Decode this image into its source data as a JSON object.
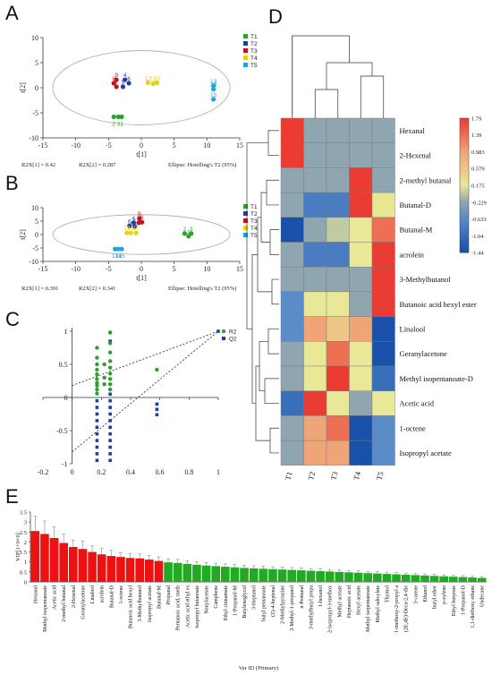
{
  "panels": {
    "a": "A",
    "b": "B",
    "c": "C",
    "d": "D",
    "e": "E"
  },
  "chart_data": [
    {
      "type": "scatter",
      "panel": "A",
      "xlabel": "t[1]",
      "ylabel": "t[2]",
      "xlim": [
        -15,
        15
      ],
      "ylim": [
        -10,
        10
      ],
      "xticks": [
        -15,
        -10,
        -5,
        0,
        5,
        10,
        15
      ],
      "yticks": [
        -10,
        -5,
        0,
        5,
        10
      ],
      "footer": [
        "R2X[1] = 0.42",
        "R2X[2] = 0.287",
        "Ellipse: Hotelling's T2 (95%)"
      ],
      "legend": [
        "T1",
        "T2",
        "T3",
        "T4",
        "T5"
      ],
      "colors": [
        "#2ca02c",
        "#1f3fa0",
        "#c0141c",
        "#e8cf1a",
        "#1ea2e0"
      ],
      "points": [
        {
          "label": "2",
          "x": -4.2,
          "y": -5.8,
          "group": 0
        },
        {
          "label": "3",
          "x": -3.5,
          "y": -5.8,
          "group": 0
        },
        {
          "label": "1",
          "x": -3.0,
          "y": -5.8,
          "group": 0
        },
        {
          "label": "4",
          "x": -2.5,
          "y": 1.6,
          "group": 1
        },
        {
          "label": "5",
          "x": -2.8,
          "y": 0.2,
          "group": 1
        },
        {
          "label": "6",
          "x": -1.9,
          "y": 0.9,
          "group": 1
        },
        {
          "label": "9",
          "x": -3.8,
          "y": 1.6,
          "group": 2
        },
        {
          "label": "8",
          "x": -4.2,
          "y": 0.9,
          "group": 2
        },
        {
          "label": "7",
          "x": -3.8,
          "y": 0.2,
          "group": 2
        },
        {
          "label": "12",
          "x": 1.0,
          "y": 1.0,
          "group": 3
        },
        {
          "label": "11",
          "x": 1.8,
          "y": 0.8,
          "group": 3
        },
        {
          "label": "10",
          "x": 2.4,
          "y": 1.0,
          "group": 3
        },
        {
          "label": "13",
          "x": 11.0,
          "y": 0.4,
          "group": 4
        },
        {
          "label": "14",
          "x": 11.0,
          "y": -0.3,
          "group": 4
        },
        {
          "label": "15",
          "x": 11.0,
          "y": -2.3,
          "group": 4
        }
      ]
    },
    {
      "type": "scatter",
      "panel": "B",
      "xlabel": "t[1]",
      "ylabel": "t[2]",
      "xlim": [
        -15,
        15
      ],
      "ylim": [
        -10,
        10
      ],
      "xticks": [
        -15,
        -10,
        -5,
        0,
        5,
        10,
        15
      ],
      "yticks": [
        -10,
        -5,
        0,
        5,
        10
      ],
      "footer": [
        "R2X[1] = 0.391",
        "R2X[2] = 0.341",
        "Ellipse: Hotelling's T2 (95%)"
      ],
      "legend": [
        "T1",
        "T2",
        "T3",
        "T4",
        "T5"
      ],
      "colors": [
        "#2ca02c",
        "#1f3fa0",
        "#c0141c",
        "#e8cf1a",
        "#1ea2e0"
      ],
      "points": [
        {
          "label": "2",
          "x": 6.6,
          "y": 0.4,
          "group": 0
        },
        {
          "label": "3",
          "x": 7.6,
          "y": 0.4,
          "group": 0
        },
        {
          "label": "1",
          "x": 7.2,
          "y": -0.6,
          "group": 0
        },
        {
          "label": "4",
          "x": -1.2,
          "y": 4.4,
          "group": 1
        },
        {
          "label": "6",
          "x": -1.8,
          "y": 3.2,
          "group": 1
        },
        {
          "label": "5",
          "x": -1.0,
          "y": 3.0,
          "group": 1
        },
        {
          "label": "9",
          "x": -0.3,
          "y": 6.0,
          "group": 2
        },
        {
          "label": "8",
          "x": 0.1,
          "y": 4.6,
          "group": 2
        },
        {
          "label": "7",
          "x": -0.4,
          "y": 4.4,
          "group": 2
        },
        {
          "label": "12",
          "x": -2.2,
          "y": 0.6,
          "group": 3
        },
        {
          "label": "11",
          "x": -1.6,
          "y": 0.6,
          "group": 3
        },
        {
          "label": "10",
          "x": -0.8,
          "y": 0.6,
          "group": 3
        },
        {
          "label": "13",
          "x": -4.0,
          "y": -5.4,
          "group": 4
        },
        {
          "label": "15",
          "x": -3.0,
          "y": -5.4,
          "group": 4
        },
        {
          "label": "14",
          "x": -3.5,
          "y": -5.4,
          "group": 4
        }
      ]
    },
    {
      "type": "scatter",
      "panel": "C",
      "xlim": [
        -0.2,
        1
      ],
      "ylim": [
        -1,
        1
      ],
      "xticks": [
        "-0.2",
        "0",
        "0.2",
        "0.4",
        "0.6",
        "0.8",
        "1"
      ],
      "yticks": [
        "-1",
        "-0.5",
        "0",
        "0.5",
        "1"
      ],
      "legend": [
        "R2",
        "Q2"
      ],
      "colors": [
        "#2ca02c",
        "#1f3fa0"
      ],
      "r2_points": [
        {
          "x": 0.17,
          "y": 0.75
        },
        {
          "x": 0.17,
          "y": 0.6
        },
        {
          "x": 0.17,
          "y": 0.5
        },
        {
          "x": 0.17,
          "y": 0.42
        },
        {
          "x": 0.17,
          "y": 0.35
        },
        {
          "x": 0.17,
          "y": 0.28
        },
        {
          "x": 0.17,
          "y": 0.22
        },
        {
          "x": 0.17,
          "y": 0.18
        },
        {
          "x": 0.17,
          "y": 0.12
        },
        {
          "x": 0.17,
          "y": 0.06
        },
        {
          "x": 0.26,
          "y": 0.98
        },
        {
          "x": 0.26,
          "y": 0.82
        },
        {
          "x": 0.26,
          "y": 0.68
        },
        {
          "x": 0.26,
          "y": 0.55
        },
        {
          "x": 0.26,
          "y": 0.45
        },
        {
          "x": 0.26,
          "y": 0.36
        },
        {
          "x": 0.26,
          "y": 0.28
        },
        {
          "x": 0.26,
          "y": 0.2
        },
        {
          "x": 0.26,
          "y": 0.12
        },
        {
          "x": 0.22,
          "y": 0.5
        },
        {
          "x": 0.22,
          "y": 0.3
        },
        {
          "x": 0.22,
          "y": 0.2
        },
        {
          "x": 0.58,
          "y": 0.42
        }
      ],
      "q2_points": [
        {
          "x": 0.17,
          "y": -0.05
        },
        {
          "x": 0.17,
          "y": -0.15
        },
        {
          "x": 0.17,
          "y": -0.25
        },
        {
          "x": 0.17,
          "y": -0.35
        },
        {
          "x": 0.17,
          "y": -0.45
        },
        {
          "x": 0.17,
          "y": -0.55
        },
        {
          "x": 0.17,
          "y": -0.65
        },
        {
          "x": 0.17,
          "y": -0.75
        },
        {
          "x": 0.17,
          "y": -0.85
        },
        {
          "x": 0.17,
          "y": -0.95
        },
        {
          "x": 0.26,
          "y": 0.98
        },
        {
          "x": 0.26,
          "y": 0.85
        },
        {
          "x": 0.26,
          "y": 0.05
        },
        {
          "x": 0.26,
          "y": -0.05
        },
        {
          "x": 0.26,
          "y": -0.15
        },
        {
          "x": 0.26,
          "y": -0.25
        },
        {
          "x": 0.26,
          "y": -0.35
        },
        {
          "x": 0.26,
          "y": -0.45
        },
        {
          "x": 0.26,
          "y": -0.55
        },
        {
          "x": 0.26,
          "y": -0.65
        },
        {
          "x": 0.26,
          "y": -0.75
        },
        {
          "x": 0.26,
          "y": -0.85
        },
        {
          "x": 0.26,
          "y": -0.95
        },
        {
          "x": 0.58,
          "y": -0.1
        },
        {
          "x": 0.58,
          "y": -0.18
        },
        {
          "x": 0.58,
          "y": -0.26
        },
        {
          "x": 1.0,
          "y": 1.0
        }
      ],
      "lines": [
        {
          "series": "R2",
          "x": [
            0.0,
            1.0
          ],
          "y": [
            0.18,
            1.0
          ]
        },
        {
          "series": "Q2",
          "x": [
            0.0,
            1.0
          ],
          "y": [
            -0.82,
            1.0
          ]
        }
      ]
    },
    {
      "type": "heatmap",
      "panel": "D",
      "columns": [
        "T1",
        "T2",
        "T3",
        "T4",
        "T5"
      ],
      "rows": [
        "Hexanal",
        "2-Hexenal",
        "2-methyl butanal",
        "Butanal-D",
        "Butanal-M",
        "acrolein",
        "3-Methylbutanol",
        "Butanoic acid hexyl ester",
        "Linalool",
        "Geranylacetone",
        "Methyl isopentanoate-D",
        "Acetic acid",
        "1-octene",
        "Isopropyl acetate"
      ],
      "values": [
        [
          1.79,
          -0.229,
          -0.229,
          -0.229,
          -0.229
        ],
        [
          1.79,
          -0.229,
          -0.229,
          -0.229,
          -0.229
        ],
        [
          -0.229,
          -0.229,
          -0.229,
          1.79,
          -0.229
        ],
        [
          -0.229,
          -0.85,
          -0.85,
          1.79,
          0.2
        ],
        [
          -1.44,
          -0.229,
          0.0,
          0.175,
          1.39
        ],
        [
          -0.229,
          -0.85,
          -0.85,
          0.175,
          1.79
        ],
        [
          -0.229,
          -0.229,
          -0.229,
          -0.229,
          1.79
        ],
        [
          -0.633,
          0.175,
          0.175,
          -0.229,
          1.79
        ],
        [
          -0.633,
          0.983,
          0.579,
          0.983,
          -1.44
        ],
        [
          -0.229,
          0.175,
          1.39,
          0.175,
          -1.44
        ],
        [
          -0.229,
          0.175,
          1.79,
          0.175,
          -1.04
        ],
        [
          -1.04,
          1.79,
          0.175,
          -0.229,
          0.175
        ],
        [
          -0.229,
          0.983,
          1.39,
          -1.44,
          -0.633
        ],
        [
          -0.229,
          0.983,
          0.983,
          -1.44,
          -0.633
        ]
      ],
      "scale_ticks": [
        "1.79",
        "1.39",
        "0.983",
        "0.579",
        "0.175",
        "-0.229",
        "-0.633",
        "-1.04",
        "-1.44"
      ],
      "scale_range": [
        -1.44,
        1.79
      ]
    },
    {
      "type": "bar",
      "panel": "E",
      "ylabel": "VIP[1+0+0]",
      "xlabel": "Var ID (Primary)",
      "yticks": [
        "0",
        "0.5",
        "1",
        "1.5",
        "2",
        "2.5",
        "3",
        "3.5"
      ],
      "ylim": [
        0,
        3.5
      ],
      "colors": {
        "high": "#ee1111",
        "low": "#22aa22"
      },
      "categories": [
        "Hexanal",
        "Methyl isopentanoate",
        "Acetic acid",
        "2-methyl butanal",
        "2-Hexenal",
        "Geranylacetone",
        "Linalool",
        "acrolein",
        "Butanal-D",
        "1-octene",
        "Butanoic acid hexyl",
        "3-Methylbutanol",
        "Isopropyl acetate",
        "Butanal-M",
        "Propanal",
        "Pentanoic acid, meth",
        "Acetic acid ethyl es",
        "Isopropyl butanoate",
        "Nonylacetate",
        "Camphene",
        "Ethyl cinnamate",
        "1-Propanol-M",
        "Butyleneglycol",
        "3-Heptanol",
        "butyl pentanoate",
        "(Z)-4-heptenal",
        "2-Methylpyrazine",
        "2-Methyl-1-propanol",
        "n-Pentanal",
        "3-methylbutyl propa",
        "1-hexanol",
        "2-Isopropyl-3-methox",
        "Methyl acetate",
        "Heptanoic acid",
        "Hexyl acetate",
        "Methyl isopentanoate",
        "Methyl salicylate",
        "Thymol",
        "1-methoxy-2-propyl a",
        "(2E,4E)-Deca-2,4-die",
        "3-carene",
        "Ethanol",
        "butyl ether",
        "p-xylene",
        "Ethyl butyrate",
        "1-Propanol-D",
        "1,1-diethoxy ethane",
        "Undecane"
      ],
      "values": [
        2.55,
        2.4,
        2.2,
        1.95,
        1.75,
        1.65,
        1.5,
        1.38,
        1.3,
        1.25,
        1.2,
        1.18,
        1.12,
        1.05,
        0.98,
        0.95,
        0.9,
        0.86,
        0.82,
        0.79,
        0.76,
        0.73,
        0.7,
        0.68,
        0.66,
        0.64,
        0.62,
        0.6,
        0.58,
        0.56,
        0.54,
        0.52,
        0.5,
        0.48,
        0.46,
        0.44,
        0.42,
        0.4,
        0.38,
        0.36,
        0.34,
        0.32,
        0.3,
        0.28,
        0.26,
        0.24,
        0.22,
        0.2
      ],
      "errors": [
        0.75,
        0.65,
        0.55,
        0.45,
        0.35,
        0.4,
        0.3,
        0.3,
        0.28,
        0.22,
        0.22,
        0.22,
        0.2,
        0.2,
        0.18,
        0.18,
        0.16,
        0.16,
        0.15,
        0.15,
        0.14,
        0.14,
        0.13,
        0.13,
        0.13,
        0.12,
        0.12,
        0.12,
        0.11,
        0.11,
        0.11,
        0.1,
        0.1,
        0.1,
        0.1,
        0.09,
        0.09,
        0.09,
        0.09,
        0.08,
        0.08,
        0.08,
        0.08,
        0.07,
        0.07,
        0.07,
        0.06,
        0.06
      ],
      "threshold_index": 14
    }
  ]
}
